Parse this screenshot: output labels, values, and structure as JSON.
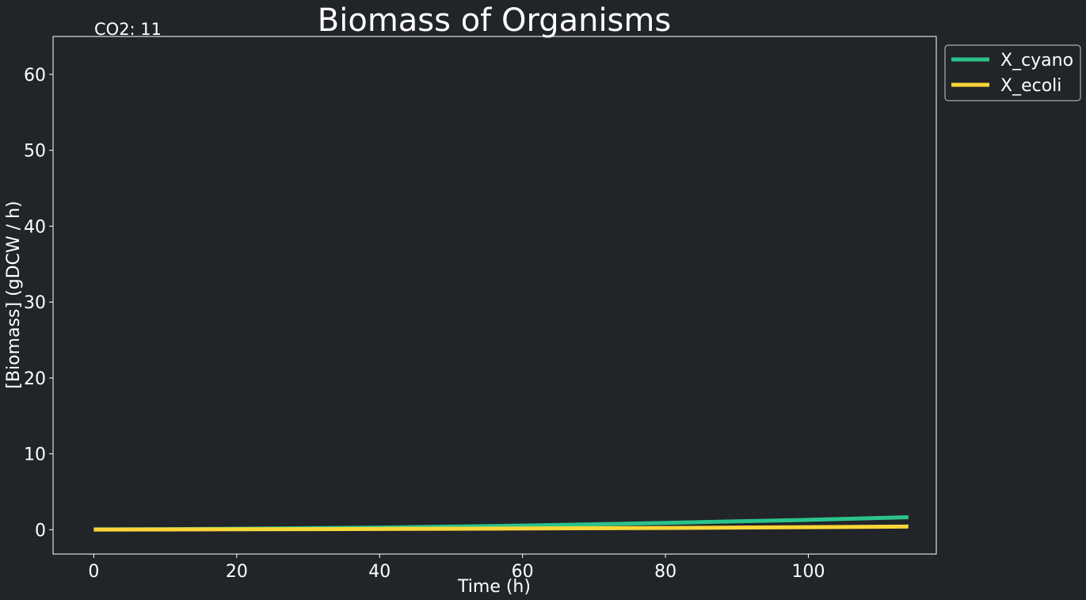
{
  "chart_data": {
    "type": "line",
    "title": "Biomass of Organisms",
    "annotation": "CO2: 11",
    "xlabel": "Time (h)",
    "ylabel": "[Biomass] (gDCW / h)",
    "xlim": [
      -5.7,
      117.9
    ],
    "ylim": [
      -3.2,
      65
    ],
    "xticks": [
      0,
      20,
      40,
      60,
      80,
      100
    ],
    "yticks": [
      0,
      10,
      20,
      30,
      40,
      50,
      60
    ],
    "grid": false,
    "legend_position": "outside-top-right",
    "background_color": "#212429",
    "text_color": "#ffffff",
    "series": [
      {
        "name": "X_cyano",
        "color": "#2cc38b",
        "x": [
          0,
          10,
          20,
          30,
          40,
          50,
          60,
          70,
          80,
          90,
          100,
          114
        ],
        "y": [
          0.05,
          0.08,
          0.13,
          0.2,
          0.29,
          0.41,
          0.55,
          0.72,
          0.9,
          1.1,
          1.3,
          1.65
        ]
      },
      {
        "name": "X_ecoli",
        "color": "#fbd637",
        "x": [
          0,
          10,
          20,
          30,
          40,
          50,
          60,
          70,
          80,
          90,
          100,
          114
        ],
        "y": [
          0.03,
          0.04,
          0.06,
          0.08,
          0.1,
          0.13,
          0.16,
          0.2,
          0.24,
          0.29,
          0.34,
          0.42
        ]
      }
    ]
  }
}
